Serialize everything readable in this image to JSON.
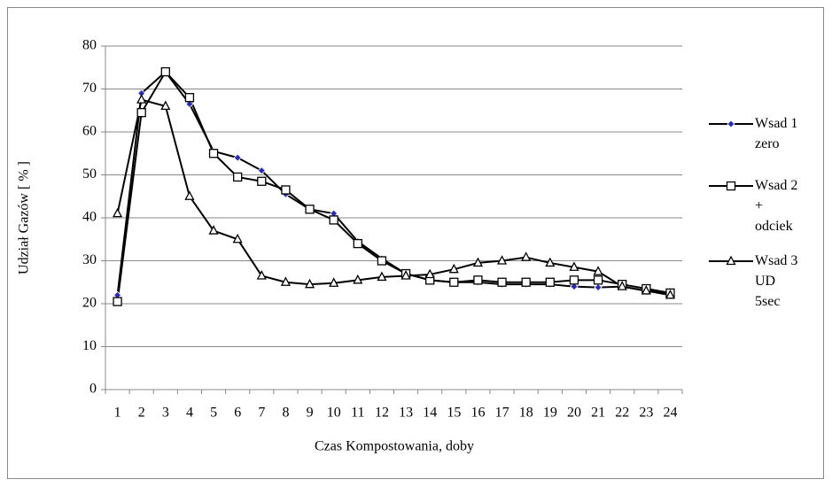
{
  "chart_data": {
    "type": "line",
    "x_label": "Czas Kompostowania, doby",
    "y_label": "Udział Gazów [ % ]",
    "categories": [
      "1",
      "2",
      "3",
      "4",
      "5",
      "6",
      "7",
      "8",
      "9",
      "10",
      "11",
      "12",
      "13",
      "14",
      "15",
      "16",
      "17",
      "18",
      "19",
      "20",
      "21",
      "22",
      "23",
      "24"
    ],
    "ylim": [
      0,
      80
    ],
    "yticks": [
      0,
      10,
      20,
      30,
      40,
      50,
      60,
      70,
      80
    ],
    "grid": true,
    "series": [
      {
        "name": "Wsad 1\nzero",
        "color": "#000000",
        "marker": "diamond",
        "marker_fill": "#2a2ab8",
        "values": [
          22,
          69,
          74,
          66.5,
          55.5,
          54,
          51,
          45.5,
          42,
          41,
          34.5,
          30.5,
          27,
          25.5,
          25,
          25,
          24.5,
          24.5,
          24.5,
          24,
          23.8,
          24,
          23,
          22.5
        ]
      },
      {
        "name": "Wsad 2\n+\nodciek",
        "color": "#000000",
        "marker": "square",
        "marker_fill": "#ffffff",
        "values": [
          20.5,
          64.5,
          74,
          68,
          55,
          49.5,
          48.5,
          46.5,
          42,
          39.5,
          34,
          30,
          27,
          25.5,
          25,
          25.5,
          25,
          25,
          25,
          25.5,
          25.5,
          24.5,
          23.5,
          22.5
        ]
      },
      {
        "name": "Wsad 3\nUD\n5sec",
        "color": "#000000",
        "marker": "triangle",
        "marker_fill": "#ffffff",
        "values": [
          41,
          67.5,
          66,
          45,
          37,
          35,
          26.5,
          25,
          24.5,
          24.8,
          25.5,
          26.2,
          26.5,
          26.8,
          28,
          29.5,
          30,
          30.8,
          29.5,
          28.5,
          27.5,
          24,
          23,
          22
        ]
      }
    ]
  }
}
